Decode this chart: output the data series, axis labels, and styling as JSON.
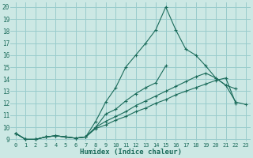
{
  "xlabel": "Humidex (Indice chaleur)",
  "bg_color": "#cce8e4",
  "grid_color": "#99cccc",
  "line_color": "#1a6b5a",
  "xlim": [
    -0.5,
    23.5
  ],
  "ylim": [
    8.8,
    20.4
  ],
  "xticks": [
    0,
    1,
    2,
    3,
    4,
    5,
    6,
    7,
    8,
    9,
    10,
    11,
    12,
    13,
    14,
    15,
    16,
    17,
    18,
    19,
    20,
    21,
    22,
    23
  ],
  "yticks": [
    9,
    10,
    11,
    12,
    13,
    14,
    15,
    16,
    17,
    18,
    19,
    20
  ],
  "lines": [
    {
      "x": [
        0,
        1,
        2,
        3,
        4,
        5,
        6,
        7,
        8,
        9,
        10,
        11,
        12,
        13,
        14,
        15,
        16,
        17,
        18,
        19,
        20,
        21,
        22
      ],
      "y": [
        9.5,
        9.0,
        9.0,
        9.2,
        9.3,
        9.2,
        9.1,
        9.2,
        10.5,
        12.1,
        13.3,
        15.0,
        16.0,
        17.0,
        18.1,
        20.0,
        18.1,
        16.5,
        16.0,
        15.1,
        14.1,
        13.5,
        13.2
      ]
    },
    {
      "x": [
        0,
        1,
        2,
        3,
        4,
        5,
        6,
        7,
        8,
        9,
        10,
        11,
        12,
        13,
        14,
        15
      ],
      "y": [
        9.5,
        9.0,
        9.0,
        9.2,
        9.3,
        9.2,
        9.1,
        9.2,
        10.0,
        11.1,
        11.5,
        12.2,
        12.8,
        13.3,
        13.7,
        15.1
      ]
    },
    {
      "x": [
        0,
        1,
        2,
        3,
        4,
        5,
        6,
        7,
        8,
        9,
        10,
        11,
        12,
        13,
        14,
        15,
        16,
        17,
        18,
        19,
        20,
        21,
        22,
        23
      ],
      "y": [
        9.5,
        9.0,
        9.0,
        9.2,
        9.3,
        9.2,
        9.1,
        9.2,
        10.0,
        10.5,
        10.9,
        11.3,
        11.8,
        12.2,
        12.6,
        13.0,
        13.4,
        13.8,
        14.2,
        14.5,
        14.1,
        13.5,
        12.1,
        11.9
      ]
    },
    {
      "x": [
        0,
        1,
        2,
        3,
        4,
        5,
        6,
        7,
        8,
        9,
        10,
        11,
        12,
        13,
        14,
        15,
        16,
        17,
        18,
        19,
        20,
        21,
        22
      ],
      "y": [
        9.5,
        9.0,
        9.0,
        9.2,
        9.3,
        9.2,
        9.1,
        9.2,
        9.9,
        10.2,
        10.6,
        10.9,
        11.3,
        11.6,
        12.0,
        12.3,
        12.7,
        13.0,
        13.3,
        13.6,
        13.9,
        14.1,
        12.0
      ]
    }
  ]
}
